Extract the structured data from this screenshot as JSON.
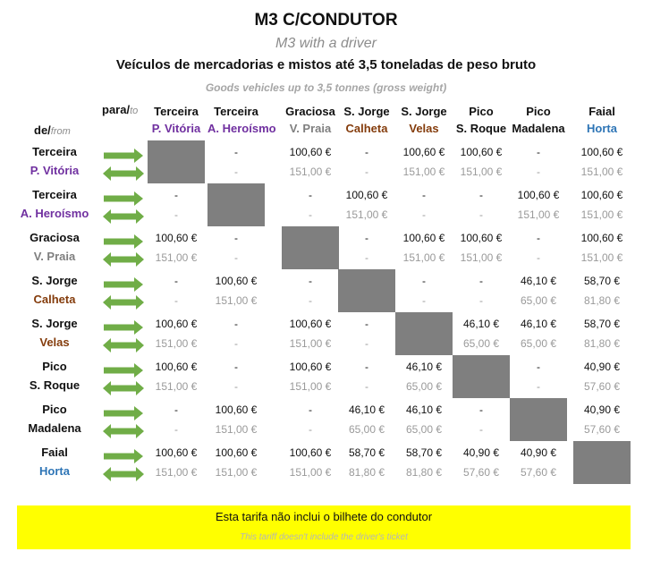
{
  "title": "M3 C/CONDUTOR",
  "subtitle": "M3 with a driver",
  "heading": "Veículos de mercadorias e mistos até 3,5 toneladas de peso bruto",
  "subheading": "Goods vehicles up to 3,5 tonnes (gross weight)",
  "para_label": "para/",
  "para_en": "to",
  "de_label": "de/",
  "de_en": "from",
  "colors": {
    "purple": "#7030a0",
    "brown": "#843c0c",
    "gray": "#7f7f7f",
    "blue": "#2e75b6",
    "arrow": "#70ad47",
    "banner": "#ffff00"
  },
  "locations": [
    {
      "island": "Terceira",
      "port": "P. Vitória",
      "color": "#7030a0"
    },
    {
      "island": "Terceira",
      "port": "A. Heroísmo",
      "color": "#7030a0"
    },
    {
      "island": "Graciosa",
      "port": "V. Praia",
      "color": "#7f7f7f"
    },
    {
      "island": "S. Jorge",
      "port": "Calheta",
      "color": "#843c0c"
    },
    {
      "island": "S. Jorge",
      "port": "Velas",
      "color": "#843c0c"
    },
    {
      "island": "Pico",
      "port": "S. Roque",
      "color": "#111111"
    },
    {
      "island": "Pico",
      "port": "Madalena",
      "color": "#111111"
    },
    {
      "island": "Faial",
      "port": "Horta",
      "color": "#2e75b6"
    }
  ],
  "rows": [
    {
      "p1": [
        "",
        "-",
        "100,60 €",
        "-",
        "100,60 €",
        "100,60 €",
        "-",
        "100,60 €"
      ],
      "p2": [
        "",
        "-",
        "151,00 €",
        "-",
        "151,00 €",
        "151,00 €",
        "-",
        "151,00 €"
      ]
    },
    {
      "p1": [
        "-",
        "",
        "-",
        "100,60 €",
        "-",
        "-",
        "100,60 €",
        "100,60 €"
      ],
      "p2": [
        "-",
        "",
        "-",
        "151,00 €",
        "-",
        "-",
        "151,00 €",
        "151,00 €"
      ]
    },
    {
      "p1": [
        "100,60 €",
        "-",
        "",
        "-",
        "100,60 €",
        "100,60 €",
        "-",
        "100,60 €"
      ],
      "p2": [
        "151,00 €",
        "-",
        "",
        "-",
        "151,00 €",
        "151,00 €",
        "-",
        "151,00 €"
      ]
    },
    {
      "p1": [
        "-",
        "100,60 €",
        "-",
        "",
        "-",
        "-",
        "46,10 €",
        "58,70 €"
      ],
      "p2": [
        "-",
        "151,00 €",
        "-",
        "",
        "-",
        "-",
        "65,00 €",
        "81,80 €"
      ]
    },
    {
      "p1": [
        "100,60 €",
        "-",
        "100,60 €",
        "-",
        "",
        "46,10 €",
        "46,10 €",
        "58,70 €"
      ],
      "p2": [
        "151,00 €",
        "-",
        "151,00 €",
        "-",
        "",
        "65,00 €",
        "65,00 €",
        "81,80 €"
      ]
    },
    {
      "p1": [
        "100,60 €",
        "-",
        "100,60 €",
        "-",
        "46,10 €",
        "",
        "-",
        "40,90 €"
      ],
      "p2": [
        "151,00 €",
        "-",
        "151,00 €",
        "-",
        "65,00 €",
        "",
        "-",
        "57,60 €"
      ]
    },
    {
      "p1": [
        "-",
        "100,60 €",
        "-",
        "46,10 €",
        "46,10 €",
        "-",
        "",
        "40,90 €"
      ],
      "p2": [
        "-",
        "151,00 €",
        "-",
        "65,00 €",
        "65,00 €",
        "-",
        "",
        "57,60 €"
      ]
    },
    {
      "p1": [
        "100,60 €",
        "100,60 €",
        "100,60 €",
        "58,70 €",
        "58,70 €",
        "40,90 €",
        "40,90 €",
        ""
      ],
      "p2": [
        "151,00 €",
        "151,00 €",
        "151,00 €",
        "81,80 €",
        "81,80 €",
        "57,60 €",
        "57,60 €",
        ""
      ]
    }
  ],
  "banner": {
    "pt": "Esta tarifa não inclui o bilhete do condutor",
    "en": "This tariff doesn't include the driver's ticket"
  }
}
